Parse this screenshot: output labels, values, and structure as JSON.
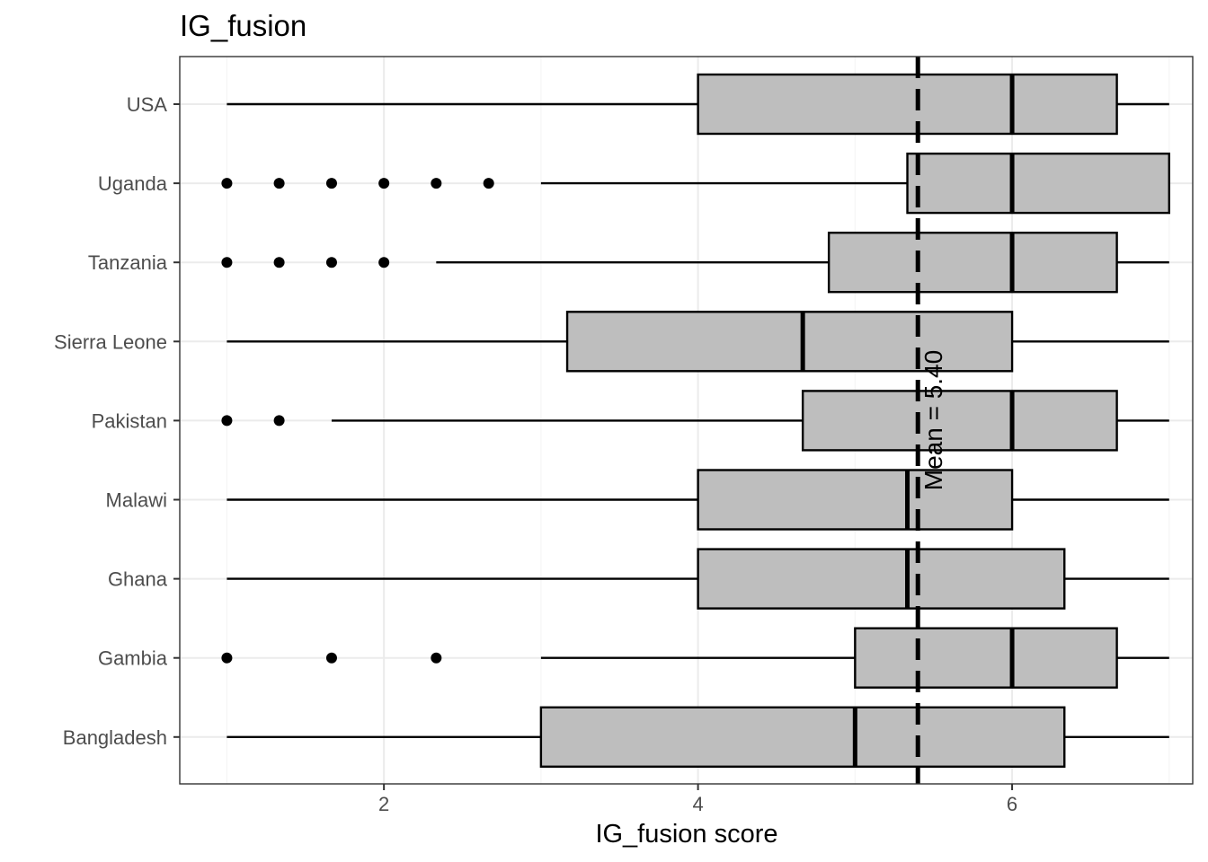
{
  "chart_data": {
    "type": "boxplot",
    "title": "IG_fusion",
    "xlabel": "IG_fusion score",
    "ylabel": "",
    "xlim": [
      0.7,
      7.15
    ],
    "xticks": [
      2,
      4,
      6
    ],
    "grid": true,
    "legend": "none",
    "mean_line": {
      "value": 5.4,
      "label": "Mean = 5.40"
    },
    "categories": [
      "USA",
      "Uganda",
      "Tanzania",
      "Sierra Leone",
      "Pakistan",
      "Malawi",
      "Ghana",
      "Gambia",
      "Bangladesh"
    ],
    "boxes": [
      {
        "name": "USA",
        "whisker_low": 1.0,
        "q1": 4.0,
        "median": 6.0,
        "q3": 6.667,
        "whisker_high": 7.0,
        "outliers": []
      },
      {
        "name": "Uganda",
        "whisker_low": 3.0,
        "q1": 5.333,
        "median": 6.0,
        "q3": 7.0,
        "whisker_high": 7.0,
        "outliers": [
          1.0,
          1.333,
          1.667,
          2.0,
          2.333,
          2.667
        ]
      },
      {
        "name": "Tanzania",
        "whisker_low": 2.333,
        "q1": 4.833,
        "median": 6.0,
        "q3": 6.667,
        "whisker_high": 7.0,
        "outliers": [
          1.0,
          1.333,
          1.667,
          2.0
        ]
      },
      {
        "name": "Sierra Leone",
        "whisker_low": 1.0,
        "q1": 3.167,
        "median": 4.667,
        "q3": 6.0,
        "whisker_high": 7.0,
        "outliers": []
      },
      {
        "name": "Pakistan",
        "whisker_low": 1.667,
        "q1": 4.667,
        "median": 6.0,
        "q3": 6.667,
        "whisker_high": 7.0,
        "outliers": [
          1.0,
          1.333
        ]
      },
      {
        "name": "Malawi",
        "whisker_low": 1.0,
        "q1": 4.0,
        "median": 5.333,
        "q3": 6.0,
        "whisker_high": 7.0,
        "outliers": []
      },
      {
        "name": "Ghana",
        "whisker_low": 1.0,
        "q1": 4.0,
        "median": 5.333,
        "q3": 6.333,
        "whisker_high": 7.0,
        "outliers": []
      },
      {
        "name": "Gambia",
        "whisker_low": 3.0,
        "q1": 5.0,
        "median": 6.0,
        "q3": 6.667,
        "whisker_high": 7.0,
        "outliers": [
          1.0,
          1.667,
          2.333
        ]
      },
      {
        "name": "Bangladesh",
        "whisker_low": 1.0,
        "q1": 3.0,
        "median": 5.0,
        "q3": 6.333,
        "whisker_high": 7.0,
        "outliers": []
      }
    ],
    "colors": {
      "box_fill": "#bebebe",
      "stroke": "#000000",
      "grid_major": "#ebebeb",
      "grid_minor": "#f5f5f5",
      "panel_border": "#333333",
      "tick_label": "#4d4d4d"
    }
  }
}
